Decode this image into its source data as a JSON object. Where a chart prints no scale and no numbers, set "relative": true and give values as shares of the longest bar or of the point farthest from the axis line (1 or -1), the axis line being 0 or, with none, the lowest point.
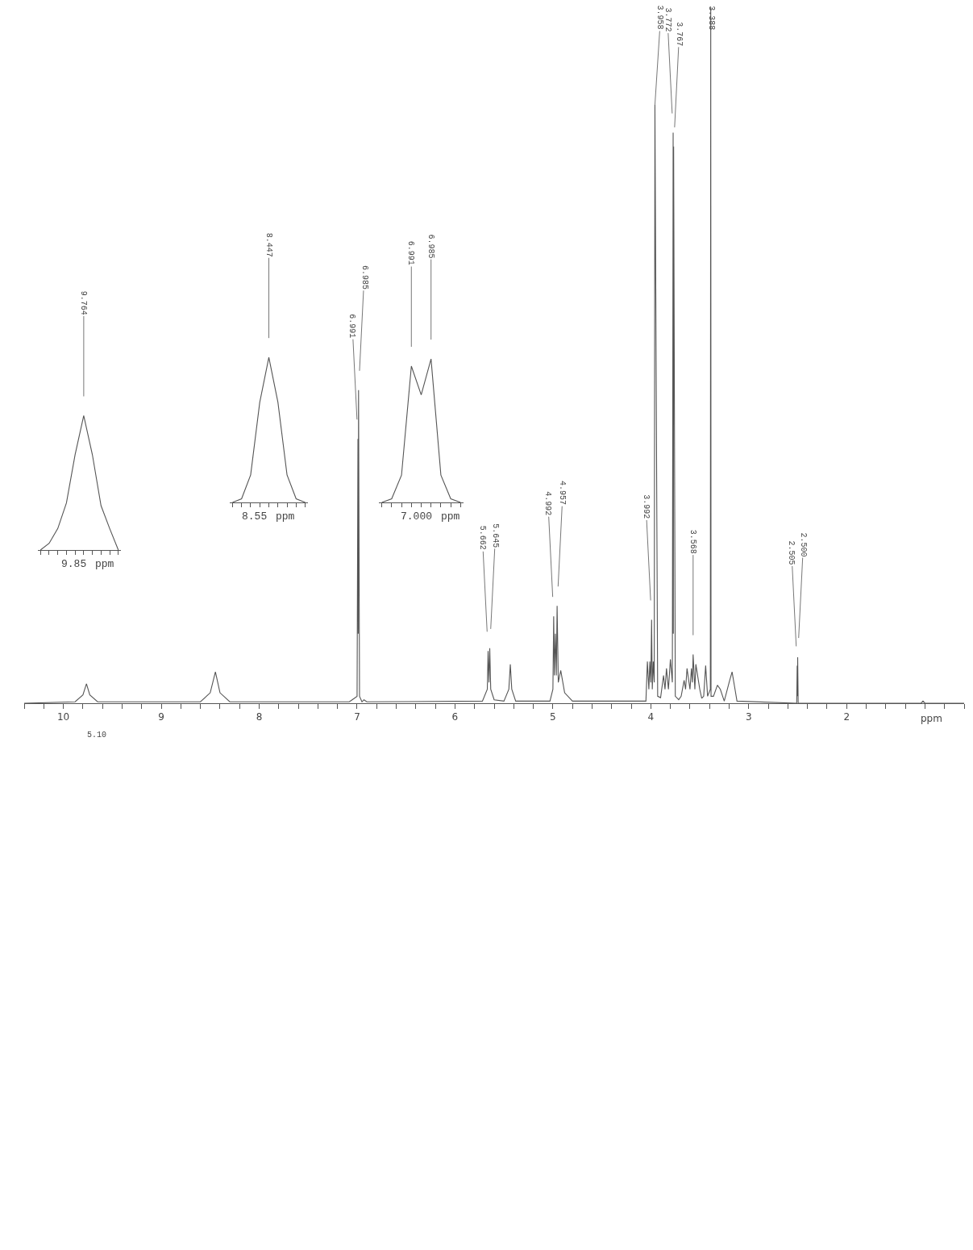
{
  "chart_data": [
    {
      "type": "line",
      "relative": true,
      "xlabel": "ppm",
      "color": "#555555",
      "x": [
        0.8,
        1.2,
        1.22,
        1.24,
        2.495,
        2.5,
        2.5025,
        2.505,
        2.51,
        3.12,
        3.14,
        3.17,
        3.2,
        3.25,
        3.29,
        3.32,
        3.36,
        3.385,
        3.388,
        3.392,
        3.42,
        3.44,
        3.46,
        3.48,
        3.5,
        3.54,
        3.55,
        3.568,
        3.575,
        3.585,
        3.6,
        3.63,
        3.645,
        3.66,
        3.69,
        3.715,
        3.75,
        3.767,
        3.77,
        3.772,
        3.78,
        3.8,
        3.82,
        3.84,
        3.855,
        3.87,
        3.9,
        3.93,
        3.958,
        3.965,
        3.975,
        3.985,
        3.992,
        4.0,
        4.01,
        4.02,
        4.035,
        4.05,
        4.8,
        4.88,
        4.92,
        4.945,
        4.957,
        4.965,
        4.975,
        4.985,
        4.992,
        5.0,
        5.03,
        5.38,
        5.42,
        5.435,
        5.45,
        5.5,
        5.6,
        5.635,
        5.645,
        5.653,
        5.662,
        5.67,
        5.72,
        6.9,
        6.93,
        6.95,
        6.975,
        6.985,
        6.988,
        6.991,
        7.0,
        7.05,
        7.08,
        8.3,
        8.4,
        8.447,
        8.5,
        8.6,
        9.65,
        9.73,
        9.764,
        9.8,
        9.88,
        10.4
      ],
      "values": [
        0,
        0,
        0.003,
        0,
        0,
        0.066,
        0.01,
        0.054,
        0,
        0.003,
        0.02,
        0.045,
        0.03,
        0.003,
        0.02,
        0.026,
        0.01,
        0.01,
        1.0,
        0.02,
        0.01,
        0.054,
        0.01,
        0.007,
        0.02,
        0.056,
        0.02,
        0.07,
        0.03,
        0.05,
        0.02,
        0.05,
        0.02,
        0.033,
        0.01,
        0.005,
        0.01,
        0.8,
        0.1,
        0.82,
        0.03,
        0.063,
        0.02,
        0.05,
        0.02,
        0.04,
        0.008,
        0.01,
        0.86,
        0.03,
        0.06,
        0.02,
        0.12,
        0.03,
        0.06,
        0.02,
        0.06,
        0.003,
        0.003,
        0.015,
        0.047,
        0.03,
        0.14,
        0.04,
        0.1,
        0.04,
        0.125,
        0.02,
        0.003,
        0.003,
        0.02,
        0.056,
        0.02,
        0.003,
        0.005,
        0.02,
        0.079,
        0.03,
        0.075,
        0.02,
        0.003,
        0.002,
        0.005,
        0.002,
        0.01,
        0.45,
        0.1,
        0.38,
        0.01,
        0.005,
        0.002,
        0.002,
        0.015,
        0.045,
        0.015,
        0.002,
        0.002,
        0.012,
        0.028,
        0.012,
        0.002,
        0
      ],
      "xlim": [
        10.4,
        0.8
      ],
      "xticks": [
        2,
        3,
        4,
        5,
        6,
        7,
        8,
        9,
        10
      ],
      "annotations": [
        {
          "text": "2.500",
          "x": 2.5,
          "y": 0.066
        },
        {
          "text": "2.505",
          "x": 2.505,
          "y": 0.054
        },
        {
          "text": "3.388",
          "x": 3.388,
          "y": 1.0
        },
        {
          "text": "3.568",
          "x": 3.568,
          "y": 0.07
        },
        {
          "text": "3.767",
          "x": 3.767,
          "y": 0.8
        },
        {
          "text": "3.772",
          "x": 3.772,
          "y": 0.82
        },
        {
          "text": "3.958",
          "x": 3.958,
          "y": 0.86
        },
        {
          "text": "3.992",
          "x": 3.992,
          "y": 0.12
        },
        {
          "text": "4.957",
          "x": 4.957,
          "y": 0.14
        },
        {
          "text": "4.992",
          "x": 4.992,
          "y": 0.125
        },
        {
          "text": "5.645",
          "x": 5.645,
          "y": 0.079
        },
        {
          "text": "5.662",
          "x": 5.662,
          "y": 0.075
        },
        {
          "text": "6.985",
          "x": 6.985,
          "y": 0.45
        },
        {
          "text": "6.991",
          "x": 6.991,
          "y": 0.38
        },
        "5.10"
      ]
    },
    {
      "type": "line",
      "relative": true,
      "color": "#555555",
      "categories": [
        null,
        null,
        null,
        null,
        null,
        null,
        null,
        null,
        null
      ],
      "values": [
        0,
        0.025,
        0.19,
        0.95,
        0.75,
        1,
        0.19,
        0.025,
        0
      ],
      "annotations": [
        {
          "text": "6.985",
          "y": 1
        },
        {
          "text": "6.991",
          "y": 0.95
        },
        "7.000",
        "ppm"
      ]
    },
    {
      "type": "line",
      "relative": true,
      "color": "#555555",
      "categories": [
        null,
        null,
        null,
        null,
        null,
        null,
        null,
        null,
        null
      ],
      "values": [
        0,
        0.025,
        0.19,
        0.69,
        1,
        0.69,
        0.19,
        0.025,
        0
      ],
      "annotations": [
        {
          "text": "8.447",
          "y": 1
        },
        "8.55",
        "ppm"
      ]
    },
    {
      "type": "line",
      "relative": true,
      "color": "#555555",
      "categories": [
        null,
        null,
        null,
        null,
        null,
        null,
        null,
        null,
        null,
        null
      ],
      "values": [
        0,
        0.05,
        0.16,
        0.35,
        0.71,
        1,
        0.71,
        0.33,
        0.16,
        0
      ],
      "annotations": [
        {
          "text": "9.764",
          "y": 1
        },
        "9.85",
        "ppm"
      ]
    }
  ]
}
